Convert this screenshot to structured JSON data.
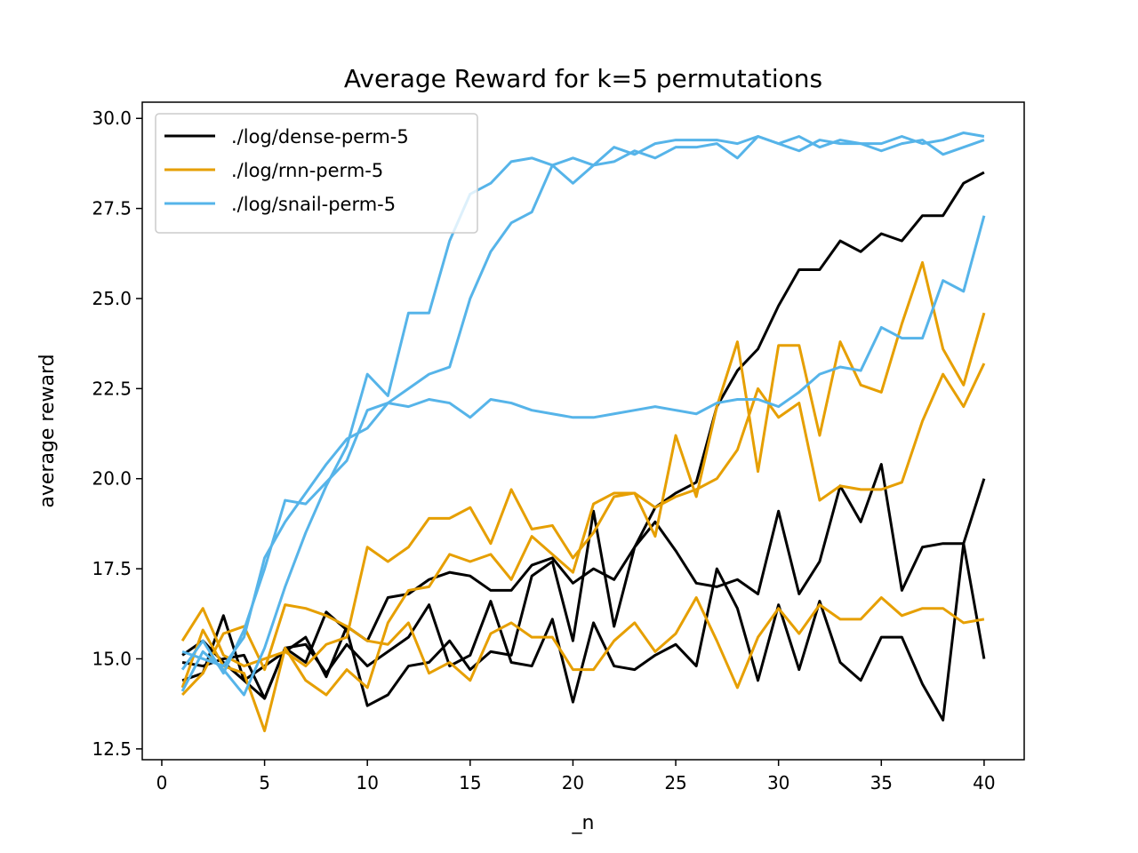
{
  "chart_data": {
    "type": "line",
    "title": "Average Reward for k=5 permutations",
    "xlabel": "_n",
    "ylabel": "average reward",
    "xlim": [
      -0.95,
      41.95
    ],
    "ylim": [
      12.2,
      30.45
    ],
    "xticks": [
      0,
      5,
      10,
      15,
      20,
      25,
      30,
      35,
      40
    ],
    "xtick_labels": [
      "0",
      "5",
      "10",
      "15",
      "20",
      "25",
      "30",
      "35",
      "40"
    ],
    "yticks": [
      12.5,
      15.0,
      17.5,
      20.0,
      22.5,
      25.0,
      27.5,
      30.0
    ],
    "ytick_labels": [
      "12.5",
      "15.0",
      "17.5",
      "20.0",
      "22.5",
      "25.0",
      "27.5",
      "30.0"
    ],
    "grid": false,
    "legend_position": "top-left",
    "legend": [
      {
        "label": "./log/dense-perm-5",
        "color": "#000000"
      },
      {
        "label": "./log/rnn-perm-5",
        "color": "#e69f00"
      },
      {
        "label": "./log/snail-perm-5",
        "color": "#56b4e9"
      }
    ],
    "x": [
      1,
      2,
      3,
      4,
      5,
      6,
      7,
      8,
      9,
      10,
      11,
      12,
      13,
      14,
      15,
      16,
      17,
      18,
      19,
      20,
      21,
      22,
      23,
      24,
      25,
      26,
      27,
      28,
      29,
      30,
      31,
      32,
      33,
      34,
      35,
      36,
      37,
      38,
      39,
      40
    ],
    "series": [
      {
        "group": "dense",
        "color": "#000000",
        "values": [
          15.1,
          15.5,
          14.9,
          14.4,
          14.8,
          15.2,
          15.6,
          14.5,
          15.9,
          15.5,
          16.7,
          16.8,
          17.2,
          17.4,
          17.3,
          16.9,
          16.9,
          17.6,
          17.8,
          17.1,
          17.5,
          17.2,
          18.1,
          19.2,
          19.6,
          19.9,
          22.0,
          23.0,
          23.6,
          24.8,
          25.8,
          25.8,
          26.6,
          26.3,
          26.8,
          26.6,
          27.3,
          27.3,
          28.2,
          28.5
        ]
      },
      {
        "group": "dense",
        "color": "#000000",
        "values": [
          14.4,
          14.6,
          16.2,
          14.4,
          13.9,
          15.3,
          14.9,
          16.3,
          15.8,
          13.7,
          14.0,
          14.8,
          14.9,
          15.5,
          14.7,
          15.2,
          15.1,
          17.3,
          17.7,
          15.5,
          19.1,
          15.9,
          18.1,
          18.8,
          18.0,
          17.1,
          17.0,
          17.2,
          16.8,
          19.1,
          16.8,
          17.7,
          19.8,
          18.8,
          20.4,
          16.9,
          18.1,
          18.2,
          18.2,
          15.0
        ]
      },
      {
        "group": "dense",
        "color": "#000000",
        "values": [
          14.9,
          14.8,
          15.0,
          15.1,
          13.9,
          15.3,
          15.4,
          14.6,
          15.4,
          14.8,
          15.2,
          15.6,
          16.5,
          14.8,
          15.1,
          16.6,
          14.9,
          14.8,
          16.1,
          13.8,
          16.0,
          14.8,
          14.7,
          15.1,
          15.4,
          14.8,
          17.5,
          16.4,
          14.4,
          16.5,
          14.7,
          16.6,
          14.9,
          14.4,
          15.6,
          15.6,
          14.3,
          13.3,
          18.2,
          20.0
        ]
      },
      {
        "group": "rnn",
        "color": "#e69f00",
        "values": [
          15.5,
          16.4,
          15.1,
          14.8,
          15.0,
          15.2,
          14.8,
          15.4,
          15.6,
          18.1,
          17.7,
          18.1,
          18.9,
          18.9,
          19.2,
          18.2,
          19.7,
          18.6,
          18.7,
          17.8,
          18.5,
          19.5,
          19.6,
          18.4,
          21.2,
          19.5,
          22.0,
          23.8,
          20.2,
          23.7,
          23.7,
          21.2,
          23.8,
          22.6,
          22.4,
          24.3,
          26.0,
          23.6,
          22.6,
          24.6
        ]
      },
      {
        "group": "rnn",
        "color": "#e69f00",
        "values": [
          14.2,
          15.8,
          14.8,
          14.6,
          13.0,
          15.3,
          14.4,
          14.0,
          14.7,
          14.2,
          16.0,
          16.9,
          17.0,
          17.9,
          17.7,
          17.9,
          17.2,
          18.4,
          17.9,
          17.4,
          19.3,
          19.6,
          19.6,
          19.2,
          19.5,
          19.7,
          20.0,
          20.8,
          22.5,
          21.7,
          22.1,
          19.4,
          19.8,
          19.7,
          19.7,
          19.9,
          21.6,
          22.9,
          22.0,
          23.2
        ]
      },
      {
        "group": "rnn",
        "color": "#e69f00",
        "values": [
          14.0,
          14.6,
          15.7,
          15.9,
          14.7,
          16.5,
          16.4,
          16.2,
          15.9,
          15.5,
          15.4,
          16.0,
          14.6,
          14.9,
          14.4,
          15.7,
          16.0,
          15.6,
          15.6,
          14.7,
          14.7,
          15.5,
          16.0,
          15.2,
          15.7,
          16.7,
          15.5,
          14.2,
          15.6,
          16.4,
          15.7,
          16.5,
          16.1,
          16.1,
          16.7,
          16.2,
          16.4,
          16.4,
          16.0,
          16.1
        ]
      },
      {
        "group": "snail",
        "color": "#56b4e9",
        "values": [
          14.1,
          15.2,
          14.7,
          14.0,
          15.3,
          17.0,
          18.5,
          19.8,
          20.9,
          22.9,
          22.3,
          24.6,
          24.6,
          26.6,
          27.9,
          28.2,
          28.8,
          28.9,
          28.7,
          28.9,
          28.7,
          28.8,
          29.1,
          28.9,
          29.2,
          29.2,
          29.3,
          28.9,
          29.5,
          29.3,
          29.1,
          29.4,
          29.3,
          29.3,
          29.1,
          29.3,
          29.4,
          29.0,
          29.2,
          29.4
        ]
      },
      {
        "group": "snail",
        "color": "#56b4e9",
        "values": [
          14.7,
          15.5,
          14.6,
          15.8,
          17.5,
          19.4,
          19.3,
          19.9,
          20.5,
          21.9,
          22.1,
          22.0,
          22.2,
          22.1,
          21.7,
          22.2,
          22.1,
          21.9,
          21.8,
          21.7,
          21.7,
          21.8,
          21.9,
          22.0,
          21.9,
          21.8,
          22.1,
          22.2,
          22.2,
          22.0,
          22.4,
          22.9,
          23.1,
          23.0,
          24.2,
          23.9,
          23.9,
          25.5,
          25.2,
          27.3
        ]
      },
      {
        "group": "snail",
        "color": "#56b4e9",
        "values": [
          15.2,
          15.0,
          14.8,
          15.6,
          17.8,
          18.8,
          19.6,
          20.4,
          21.1,
          21.4,
          22.1,
          22.5,
          22.9,
          23.1,
          25.0,
          26.3,
          27.1,
          27.4,
          28.7,
          28.2,
          28.7,
          29.2,
          29.0,
          29.3,
          29.4,
          29.4,
          29.4,
          29.3,
          29.5,
          29.3,
          29.5,
          29.2,
          29.4,
          29.3,
          29.3,
          29.5,
          29.3,
          29.4,
          29.6,
          29.5
        ]
      }
    ]
  }
}
